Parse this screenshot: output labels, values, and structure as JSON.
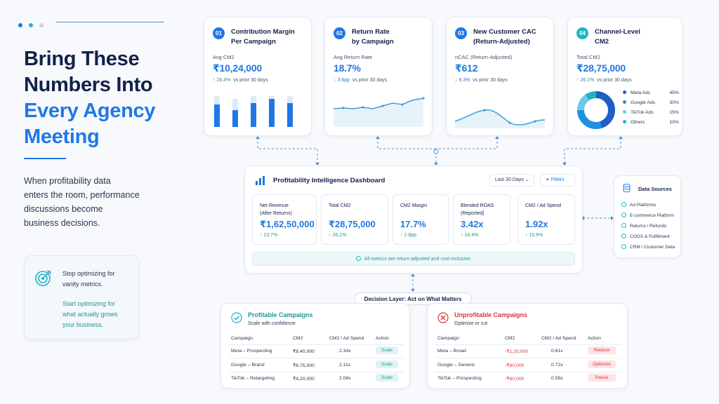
{
  "hero": {
    "line1": "Bring These",
    "line2": "Numbers Into",
    "line3": "Every Agency",
    "line4": "Meeting",
    "para1": "When profitability data",
    "para2": "enters the room, performance",
    "para3": "discussions become",
    "para4": "business decisions."
  },
  "callout": {
    "line1": "Stop optimizing for",
    "line2": "vanity metrics.",
    "line3": "Start optimizing for",
    "line4": "what actually grows",
    "line5": "your business."
  },
  "kpis": [
    {
      "num": "01",
      "title1": "Contribution Margin",
      "title2": "Per Campaign",
      "sub": "Avg CM2",
      "value": "₹10,24,000",
      "delta": "↑ 28.4%",
      "vs": "vs prior 30 days"
    },
    {
      "num": "02",
      "title1": "Return Rate",
      "title2": "by Campaign",
      "sub": "Avg Return Rate",
      "value": "18.7%",
      "delta": "↓ 3.6pp",
      "vs": "vs prior 30 days"
    },
    {
      "num": "03",
      "title1": "New Customer CAC",
      "title2": "(Return-Adjusted)",
      "sub": "nCAC (Return-Adjusted)",
      "value": "₹612",
      "delta": "↓ 9.3%",
      "vs": "vs prior 30 days"
    },
    {
      "num": "04",
      "title1": "Channel-Level",
      "title2": "CM2",
      "sub": "Total CM2",
      "value": "₹28,75,000",
      "delta": "↑ 26.1%",
      "vs": "vs prior 30 days"
    }
  ],
  "channel_legend": [
    {
      "name": "Meta Ads",
      "pct": "45%",
      "color": "#1f5fc4"
    },
    {
      "name": "Google Ads",
      "pct": "30%",
      "color": "#1f8fe0"
    },
    {
      "name": "TikTok Ads",
      "pct": "15%",
      "color": "#6fc8e8"
    },
    {
      "name": "Others",
      "pct": "10%",
      "color": "#20b3c4"
    }
  ],
  "dashboard": {
    "title": "Profitability Intelligence Dashboard",
    "range": "Last 30 Days",
    "filters": "Filters",
    "metrics": [
      {
        "l1": "Net Revenue",
        "l2": "(After Returns)",
        "value": "₹1,62,50,000",
        "delta": "↑ 23.7%"
      },
      {
        "l1": "Total CM2",
        "l2": "",
        "value": "₹28,75,000",
        "delta": "↑ 26.1%"
      },
      {
        "l1": "CM2 Margin",
        "l2": "",
        "value": "17.7%",
        "delta": "↑ 2.8pp"
      },
      {
        "l1": "Blended ROAS",
        "l2": "(Reported)",
        "value": "3.42x",
        "delta": "↑ 18.4%"
      },
      {
        "l1": "CM2 / Ad Spend",
        "l2": "",
        "value": "1.92x",
        "delta": "↑ 15.9%"
      }
    ],
    "note": "All metrics are return-adjusted and cost-inclusive."
  },
  "sources": {
    "title": "Data Sources",
    "items": [
      "Ad Platforms",
      "E-commerce Platform",
      "Returns / Refunds",
      "COGS & Fulfillment",
      "CRM / Customer Data"
    ]
  },
  "decision": {
    "label": "Decision Layer: Act on What Matters"
  },
  "profitable": {
    "title": "Profitable Campaigns",
    "sub": "Scale with confidence",
    "headers": [
      "Campaign",
      "CM2",
      "CM2 / Ad Spend",
      "Action"
    ],
    "rows": [
      [
        "Meta – Prospecting",
        "₹8,40,000",
        "2.34x",
        "Scale"
      ],
      [
        "Google – Brand",
        "₹6,75,000",
        "2.11x",
        "Scale"
      ],
      [
        "TikTok – Retargeting",
        "₹4,20,000",
        "2.08x",
        "Scale"
      ]
    ]
  },
  "unprofitable": {
    "title": "Unprofitable Campaigns",
    "sub": "Optimize or cut",
    "headers": [
      "Campaign",
      "CM2",
      "CM2 / Ad Spend",
      "Action"
    ],
    "rows": [
      [
        "Meta – Broad",
        "-₹1,20,000",
        "0.61x",
        "Reduce"
      ],
      [
        "Google – Generic",
        "-₹80,000",
        "0.72x",
        "Optimize"
      ],
      [
        "TikTok – Prospecting",
        "-₹60,000",
        "0.55x",
        "Pause"
      ]
    ]
  },
  "colors": {
    "accent": "#1f78e6",
    "teal": "#20b3c4",
    "danger": "#d8343a",
    "navy": "#13214a"
  }
}
